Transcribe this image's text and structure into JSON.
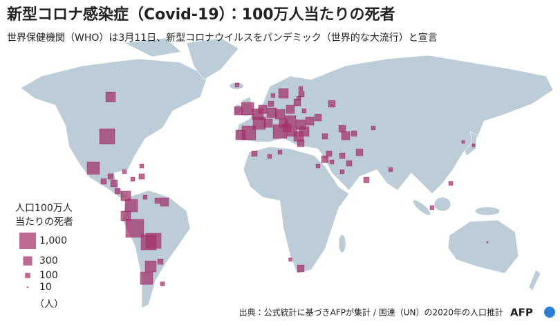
{
  "header": {
    "title": "新型コロナ感染症（Covid-19）：100万人当たりの死者",
    "subtitle": "世界保健機関（WHO）は3月11日、新型コロナウイルスをパンデミック（世界的な大流行）と宣言"
  },
  "map": {
    "marker_color": "#a3306a",
    "markers": [
      560,
      250,
      440,
      560,
      690,
      340,
      690,
      250,
      340,
      250,
      340,
      250,
      440,
      340,
      340,
      250,
      250,
      340,
      340,
      170,
      340,
      60,
      110,
      60,
      170,
      170,
      250,
      60,
      170,
      60,
      110,
      60,
      110,
      170,
      250,
      110,
      60,
      170,
      110,
      170,
      110,
      60,
      60,
      110,
      110,
      60,
      60,
      110,
      60,
      170,
      40,
      840,
      1170,
      840,
      440,
      560,
      560,
      340,
      110,
      60,
      60,
      560,
      840,
      340,
      110,
      170,
      340,
      110,
      60,
      110,
      60,
      250,
      110,
      60,
      60,
      60,
      30,
      30,
      7,
      110,
      60
    ]
  },
  "legend": {
    "title": [
      "人口100万人",
      "当たりの死者"
    ],
    "items": [
      {
        "value": 1000,
        "label": "1,000"
      },
      300,
      100,
      10
    ],
    "unit": "（人）"
  },
  "footer": {
    "source": "出典：公式統計に基づきAFPが集計 / 国連（UN）の2020年の人口推計",
    "logo": "AFP"
  }
}
